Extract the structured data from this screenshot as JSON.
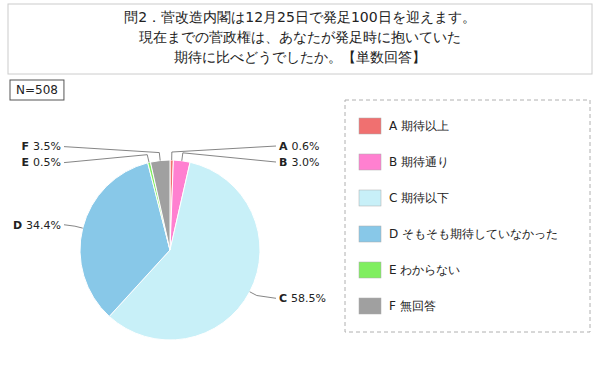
{
  "chart_data": {
    "type": "pie",
    "title": [
      "問2．菅改造内閣は12月25日で発足100日を迎えます。",
      "現在までの菅政権は、あなたが発足時に抱いていた",
      "期待に比べどうでしたか。【単数回答】"
    ],
    "annotations": [
      "N=508"
    ],
    "categories": [
      "A",
      "B",
      "C",
      "D",
      "E",
      "F"
    ],
    "values": [
      0.6,
      3.0,
      58.5,
      34.4,
      0.5,
      3.5
    ],
    "value_labels": [
      "0.6%",
      "3.0%",
      "58.5%",
      "34.4%",
      "0.5%",
      "3.5%"
    ],
    "legend_labels": [
      "A  期待以上",
      "B  期待通り",
      "C  期待以下",
      "D  そもそも期待していなかった",
      "E  わからない",
      "F  無回答"
    ],
    "colors": [
      "#f07070",
      "#ff80d0",
      "#c8f0f8",
      "#88c8e8",
      "#80ee60",
      "#a0a0a0"
    ],
    "data_labels": true,
    "legend": "right"
  }
}
